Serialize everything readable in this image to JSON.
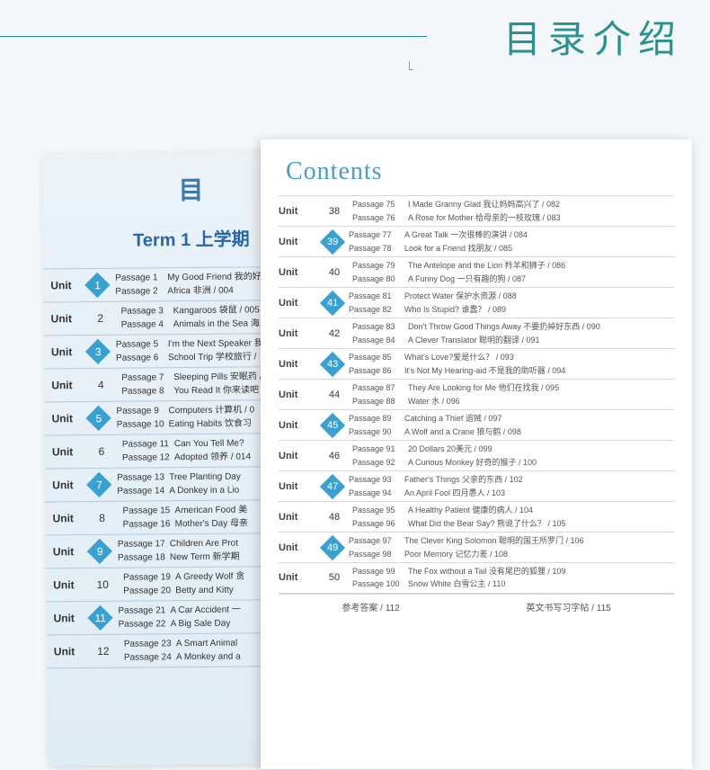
{
  "header": {
    "title": "目录介绍"
  },
  "left": {
    "headerChar": "目",
    "termTitle": "Term 1  上学期",
    "units": [
      {
        "num": "1",
        "hl": true,
        "p": [
          [
            "Passage 1",
            "My Good Friend  我的好"
          ],
          [
            "Passage 2",
            "Africa  非洲 / 004"
          ]
        ]
      },
      {
        "num": "2",
        "hl": false,
        "p": [
          [
            "Passage 3",
            "Kangaroos 袋鼠 / 005"
          ],
          [
            "Passage 4",
            "Animals in the Sea 海里"
          ]
        ]
      },
      {
        "num": "3",
        "hl": true,
        "p": [
          [
            "Passage 5",
            "I'm the Next Speaker 我"
          ],
          [
            "Passage 6",
            "School Trip 学校旅行 /"
          ]
        ]
      },
      {
        "num": "4",
        "hl": false,
        "p": [
          [
            "Passage 7",
            "Sleeping Pills 安眠药 /"
          ],
          [
            "Passage 8",
            "You Read It 你来读吧"
          ]
        ]
      },
      {
        "num": "5",
        "hl": true,
        "p": [
          [
            "Passage 9",
            "Computers 计算机 / 0"
          ],
          [
            "Passage 10",
            "Eating Habits 饮食习"
          ]
        ]
      },
      {
        "num": "6",
        "hl": false,
        "p": [
          [
            "Passage 11",
            "Can You Tell Me?"
          ],
          [
            "Passage 12",
            "Adopted 领养 / 014"
          ]
        ]
      },
      {
        "num": "7",
        "hl": true,
        "p": [
          [
            "Passage 13",
            "Tree Planting Day"
          ],
          [
            "Passage 14",
            "A Donkey in a Lio"
          ]
        ]
      },
      {
        "num": "8",
        "hl": false,
        "p": [
          [
            "Passage 15",
            "American Food 美"
          ],
          [
            "Passage 16",
            "Mother's Day  母亲"
          ]
        ]
      },
      {
        "num": "9",
        "hl": true,
        "p": [
          [
            "Passage 17",
            "Children Are Prot"
          ],
          [
            "Passage 18",
            "New Term 新学期"
          ]
        ]
      },
      {
        "num": "10",
        "hl": false,
        "p": [
          [
            "Passage 19",
            "A Greedy Wolf 贪"
          ],
          [
            "Passage 20",
            "Betty and Kitty"
          ]
        ]
      },
      {
        "num": "11",
        "hl": true,
        "p": [
          [
            "Passage 21",
            "A Car Accident 一"
          ],
          [
            "Passage 22",
            "A Big Sale Day"
          ]
        ]
      },
      {
        "num": "12",
        "hl": false,
        "p": [
          [
            "Passage 23",
            "A Smart Animal"
          ],
          [
            "Passage 24",
            "A Monkey and a"
          ]
        ]
      }
    ]
  },
  "right": {
    "title": "Contents",
    "units": [
      {
        "num": "38",
        "hl": false,
        "p": [
          [
            "Passage 75",
            "I Made Granny Glad  我让妈妈高兴了 / 082"
          ],
          [
            "Passage 76",
            "A Rose for Mother  给母亲的一枝玫瑰 / 083"
          ]
        ]
      },
      {
        "num": "39",
        "hl": true,
        "p": [
          [
            "Passage 77",
            "A Great Talk 一次很棒的演讲 / 084"
          ],
          [
            "Passage 78",
            "Look for a Friend  找朋友 / 085"
          ]
        ]
      },
      {
        "num": "40",
        "hl": false,
        "p": [
          [
            "Passage 79",
            "The Antelope and the Lion 羚羊和狮子 / 086"
          ],
          [
            "Passage 80",
            "A Funny Dog 一只有趣的狗 / 087"
          ]
        ]
      },
      {
        "num": "41",
        "hl": true,
        "p": [
          [
            "Passage 81",
            "Protect Water 保护水资源 / 088"
          ],
          [
            "Passage 82",
            "Who Is Stupid? 谁蠢？ / 089"
          ]
        ]
      },
      {
        "num": "42",
        "hl": false,
        "p": [
          [
            "Passage 83",
            "Don't Throw Good Things Away  不要扔掉好东西 / 090"
          ],
          [
            "Passage 84",
            "A Clever Translator 聪明的翻译 / 091"
          ]
        ]
      },
      {
        "num": "43",
        "hl": true,
        "p": [
          [
            "Passage 85",
            "What's Love?爱是什么？ / 093"
          ],
          [
            "Passage 86",
            "It's Not My Hearing-aid 不是我的助听器 / 094"
          ]
        ]
      },
      {
        "num": "44",
        "hl": false,
        "p": [
          [
            "Passage 87",
            "They Are Looking for Me  他们在找我 / 095"
          ],
          [
            "Passage 88",
            "Water 水 / 096"
          ]
        ]
      },
      {
        "num": "45",
        "hl": true,
        "p": [
          [
            "Passage 89",
            "Catching a Thief  追贼 / 097"
          ],
          [
            "Passage 90",
            "A Wolf and a Crane  狼与鹤 / 098"
          ]
        ]
      },
      {
        "num": "46",
        "hl": false,
        "p": [
          [
            "Passage 91",
            "20 Dollars  20美元 / 099"
          ],
          [
            "Passage 92",
            "A Curious Monkey  好奇的猴子 / 100"
          ]
        ]
      },
      {
        "num": "47",
        "hl": true,
        "p": [
          [
            "Passage 93",
            "Father's Things  父亲的东西 / 102"
          ],
          [
            "Passage 94",
            "An April Fool  四月愚人 / 103"
          ]
        ]
      },
      {
        "num": "48",
        "hl": false,
        "p": [
          [
            "Passage 95",
            "A Healthy Patient 健康的病人 / 104"
          ],
          [
            "Passage 96",
            "What Did the Bear Say?  熊说了什么？ / 105"
          ]
        ]
      },
      {
        "num": "49",
        "hl": true,
        "p": [
          [
            "Passage 97",
            "The Clever King Solomon  聪明的国王所罗门 / 106"
          ],
          [
            "Passage 98",
            "Poor Memory  记忆力差 / 108"
          ]
        ]
      },
      {
        "num": "50",
        "hl": false,
        "p": [
          [
            "Passage 99",
            "The Fox without a Tail  没有尾巴的狐狸 / 109"
          ],
          [
            "Passage 100",
            "Snow White  白雪公主 / 110"
          ]
        ]
      }
    ],
    "footer": {
      "left": "参考答案 / 112",
      "right": "英文书写习字帖 / 115"
    }
  }
}
